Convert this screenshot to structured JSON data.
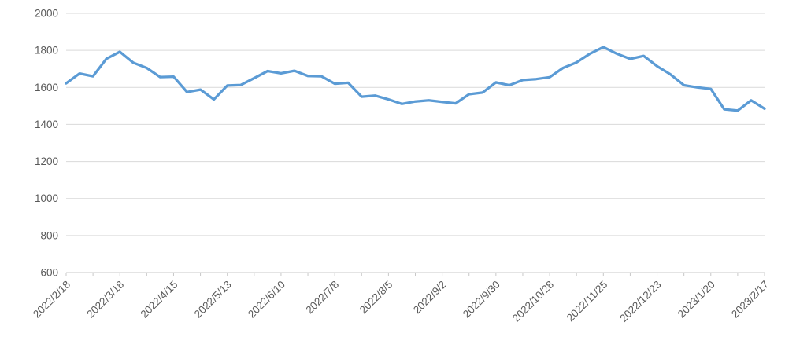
{
  "chart": {
    "colors": {
      "line": "#5B9BD5",
      "gridline": "#D9D9D9",
      "axis": "#C8C8C8",
      "label": "#595959",
      "background": "#FFFFFF"
    }
  },
  "chart_data": {
    "type": "line",
    "title": "",
    "xlabel": "",
    "ylabel": "",
    "legend": "none",
    "grid": true,
    "ylim": [
      600,
      2000
    ],
    "y_tick_step": 200,
    "y_tick_labels": [
      "2000",
      "1800",
      "1600",
      "1400",
      "1200",
      "1000",
      "800",
      "600"
    ],
    "x_tick_labels": [
      "2022/2/18",
      "2022/3/18",
      "2022/4/15",
      "2022/5/13",
      "2022/6/10",
      "2022/7/8",
      "2022/8/5",
      "2022/9/2",
      "2022/9/30",
      "2022/10/28",
      "2022/11/25",
      "2022/12/23",
      "2023/1/20",
      "2023/2/17"
    ],
    "x_label_every": 4,
    "x_minor_tick_every": 2,
    "categories": [
      "2022/2/18",
      "2022/2/25",
      "2022/3/4",
      "2022/3/11",
      "2022/3/18",
      "2022/3/25",
      "2022/4/1",
      "2022/4/8",
      "2022/4/15",
      "2022/4/22",
      "2022/4/29",
      "2022/5/6",
      "2022/5/13",
      "2022/5/20",
      "2022/5/27",
      "2022/6/3",
      "2022/6/10",
      "2022/6/17",
      "2022/6/24",
      "2022/7/1",
      "2022/7/8",
      "2022/7/15",
      "2022/7/22",
      "2022/7/29",
      "2022/8/5",
      "2022/8/12",
      "2022/8/19",
      "2022/8/26",
      "2022/9/2",
      "2022/9/9",
      "2022/9/16",
      "2022/9/23",
      "2022/9/30",
      "2022/10/7",
      "2022/10/14",
      "2022/10/21",
      "2022/10/28",
      "2022/11/4",
      "2022/11/11",
      "2022/11/18",
      "2022/11/25",
      "2022/12/2",
      "2022/12/9",
      "2022/12/16",
      "2022/12/23",
      "2022/12/30",
      "2023/1/6",
      "2023/1/13",
      "2023/1/20",
      "2023/1/27",
      "2023/2/3",
      "2023/2/10",
      "2023/2/17"
    ],
    "values": [
      1622,
      1675,
      1660,
      1755,
      1792,
      1733,
      1705,
      1656,
      1658,
      1575,
      1588,
      1535,
      1610,
      1613,
      1650,
      1688,
      1676,
      1690,
      1662,
      1660,
      1620,
      1625,
      1550,
      1556,
      1535,
      1511,
      1524,
      1530,
      1522,
      1514,
      1563,
      1572,
      1627,
      1612,
      1640,
      1645,
      1655,
      1705,
      1735,
      1782,
      1818,
      1782,
      1754,
      1770,
      1715,
      1670,
      1612,
      1600,
      1592,
      1482,
      1475,
      1530,
      1485
    ]
  }
}
